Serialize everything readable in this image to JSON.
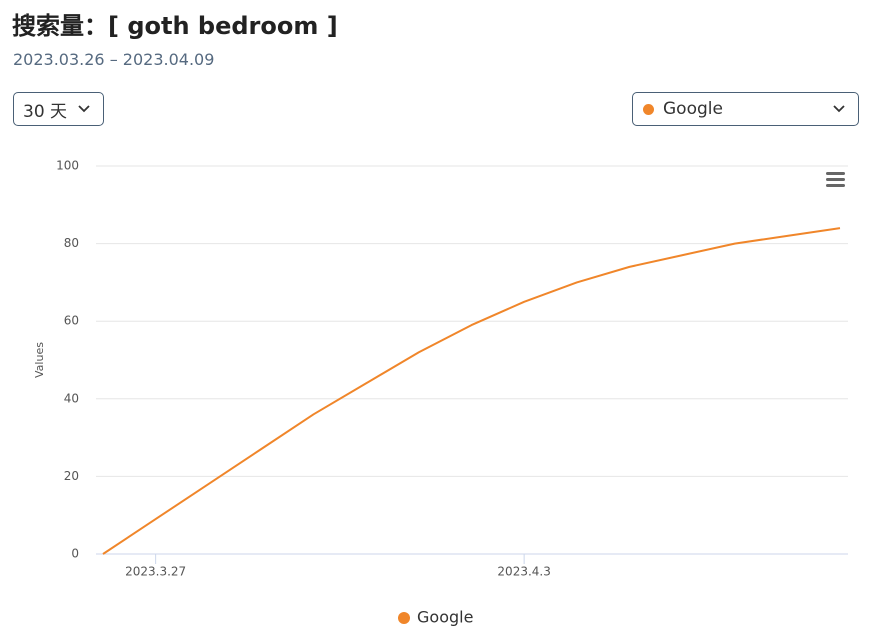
{
  "header": {
    "title": "搜索量：[ goth bedroom ]",
    "subtitle": "2023.03.26 – 2023.04.09"
  },
  "controls": {
    "range": "30 天",
    "engine": "Google"
  },
  "chart_data": {
    "type": "line",
    "y_label": "Values",
    "x": [
      "2023-03-26",
      "2023-03-27",
      "2023-03-28",
      "2023-03-29",
      "2023-03-30",
      "2023-03-31",
      "2023-04-01",
      "2023-04-02",
      "2023-04-03",
      "2023-04-04",
      "2023-04-05",
      "2023-04-06",
      "2023-04-07",
      "2023-04-08",
      "2023-04-09"
    ],
    "series": [
      {
        "name": "Google",
        "color": "#f0862a",
        "values": [
          0,
          9,
          18,
          27,
          36,
          44,
          52,
          59,
          65,
          70,
          74,
          77,
          80,
          82,
          84
        ]
      }
    ],
    "xlim": [
      "2023-03-26",
      "2023-04-09"
    ],
    "xticks": [
      {
        "value": "2023-03-27",
        "label": "2023.3.27"
      },
      {
        "value": "2023-04-03",
        "label": "2023.4.3"
      }
    ],
    "ylim": [
      0,
      100
    ],
    "yticks": [
      0,
      20,
      40,
      60,
      80,
      100
    ],
    "grid": true
  }
}
